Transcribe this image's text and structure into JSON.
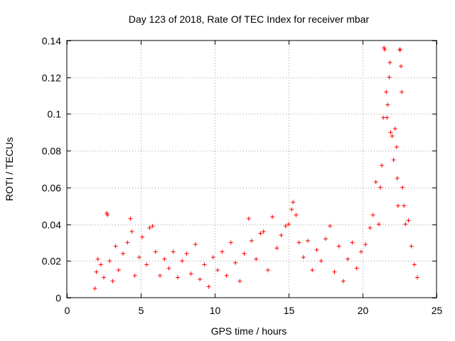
{
  "chart_data": {
    "type": "scatter",
    "title": "Day 123 of 2018, Rate Of TEC Index for receiver mbar",
    "xlabel": "GPS time / hours",
    "ylabel": "ROTI / TECUs",
    "xlim": [
      0,
      25
    ],
    "ylim": [
      0,
      0.14
    ],
    "x_ticks": [
      0,
      5,
      10,
      15,
      20,
      25
    ],
    "x_tick_labels": [
      "0",
      "5",
      "10",
      "15",
      "20",
      "25"
    ],
    "y_ticks": [
      0,
      0.02,
      0.04,
      0.06,
      0.08,
      0.1,
      0.12,
      0.14
    ],
    "y_tick_labels": [
      "0",
      "0.02",
      "0.04",
      "0.06",
      "0.08",
      "0.1",
      "0.12",
      "0.14"
    ],
    "grid": true,
    "legend": "none",
    "marker": "+",
    "color": "#ff0000",
    "series": [
      {
        "points": [
          [
            1.9,
            0.005
          ],
          [
            2.0,
            0.014
          ],
          [
            2.1,
            0.021
          ],
          [
            2.3,
            0.018
          ],
          [
            2.5,
            0.011
          ],
          [
            2.7,
            0.046
          ],
          [
            2.75,
            0.045
          ],
          [
            2.9,
            0.02
          ],
          [
            3.1,
            0.009
          ],
          [
            3.3,
            0.028
          ],
          [
            3.5,
            0.015
          ],
          [
            3.8,
            0.024
          ],
          [
            4.1,
            0.03
          ],
          [
            4.3,
            0.043
          ],
          [
            4.4,
            0.036
          ],
          [
            4.6,
            0.012
          ],
          [
            4.9,
            0.022
          ],
          [
            5.1,
            0.033
          ],
          [
            5.4,
            0.018
          ],
          [
            5.6,
            0.038
          ],
          [
            5.8,
            0.039
          ],
          [
            6.0,
            0.025
          ],
          [
            6.3,
            0.012
          ],
          [
            6.6,
            0.021
          ],
          [
            6.9,
            0.016
          ],
          [
            7.2,
            0.025
          ],
          [
            7.5,
            0.011
          ],
          [
            7.8,
            0.02
          ],
          [
            8.1,
            0.024
          ],
          [
            8.4,
            0.013
          ],
          [
            8.7,
            0.029
          ],
          [
            9.0,
            0.01
          ],
          [
            9.3,
            0.018
          ],
          [
            9.6,
            0.006
          ],
          [
            9.9,
            0.022
          ],
          [
            10.2,
            0.015
          ],
          [
            10.5,
            0.025
          ],
          [
            10.8,
            0.012
          ],
          [
            11.1,
            0.03
          ],
          [
            11.4,
            0.019
          ],
          [
            11.7,
            0.009
          ],
          [
            12.0,
            0.024
          ],
          [
            12.3,
            0.043
          ],
          [
            12.5,
            0.031
          ],
          [
            12.8,
            0.021
          ],
          [
            13.1,
            0.035
          ],
          [
            13.3,
            0.036
          ],
          [
            13.6,
            0.015
          ],
          [
            13.9,
            0.044
          ],
          [
            14.2,
            0.027
          ],
          [
            14.5,
            0.034
          ],
          [
            14.8,
            0.039
          ],
          [
            15.0,
            0.04
          ],
          [
            15.2,
            0.048
          ],
          [
            15.3,
            0.052
          ],
          [
            15.5,
            0.045
          ],
          [
            15.7,
            0.03
          ],
          [
            16.0,
            0.022
          ],
          [
            16.3,
            0.031
          ],
          [
            16.6,
            0.015
          ],
          [
            16.9,
            0.026
          ],
          [
            17.2,
            0.02
          ],
          [
            17.5,
            0.032
          ],
          [
            17.8,
            0.039
          ],
          [
            18.1,
            0.014
          ],
          [
            18.4,
            0.028
          ],
          [
            18.7,
            0.009
          ],
          [
            19.0,
            0.021
          ],
          [
            19.3,
            0.03
          ],
          [
            19.6,
            0.016
          ],
          [
            19.9,
            0.025
          ],
          [
            20.2,
            0.029
          ],
          [
            20.5,
            0.038
          ],
          [
            20.7,
            0.045
          ],
          [
            20.9,
            0.063
          ],
          [
            21.1,
            0.04
          ],
          [
            21.2,
            0.06
          ],
          [
            21.3,
            0.072
          ],
          [
            21.4,
            0.098
          ],
          [
            21.45,
            0.136
          ],
          [
            21.5,
            0.135
          ],
          [
            21.6,
            0.112
          ],
          [
            21.65,
            0.098
          ],
          [
            21.7,
            0.105
          ],
          [
            21.8,
            0.12
          ],
          [
            21.85,
            0.128
          ],
          [
            21.9,
            0.09
          ],
          [
            22.0,
            0.088
          ],
          [
            22.1,
            0.075
          ],
          [
            22.2,
            0.092
          ],
          [
            22.3,
            0.082
          ],
          [
            22.35,
            0.065
          ],
          [
            22.4,
            0.05
          ],
          [
            22.5,
            0.135
          ],
          [
            22.55,
            0.135
          ],
          [
            22.6,
            0.126
          ],
          [
            22.65,
            0.112
          ],
          [
            22.7,
            0.06
          ],
          [
            22.8,
            0.05
          ],
          [
            22.9,
            0.04
          ],
          [
            23.1,
            0.042
          ],
          [
            23.3,
            0.028
          ],
          [
            23.5,
            0.018
          ],
          [
            23.7,
            0.011
          ]
        ]
      }
    ]
  }
}
